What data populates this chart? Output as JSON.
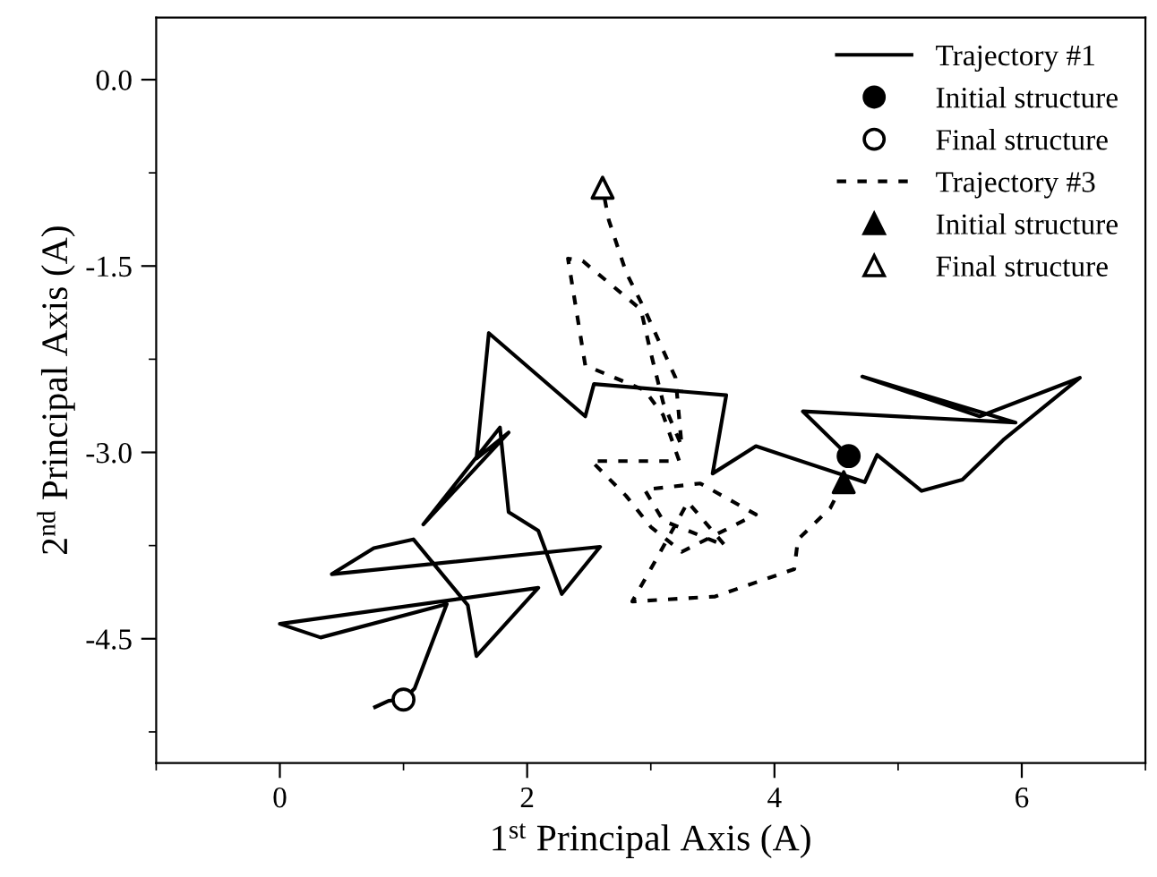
{
  "chart_data": {
    "type": "line",
    "xlabel": "1$^{st}$ Principal Axis (A)",
    "ylabel": "2$^{nd}$ Principal Axis (A)",
    "xlim": [
      -1,
      7
    ],
    "xticks": [
      0,
      2,
      4,
      6
    ],
    "ylim": [
      -5.5,
      0.5
    ],
    "yticks": [
      {
        "value": 0,
        "label": "0.0"
      },
      {
        "value": -1.5,
        "label": "-1.5"
      },
      {
        "value": -3,
        "label": "-3.0"
      },
      {
        "value": -4.5,
        "label": "-4.5"
      }
    ],
    "grid": false,
    "legend": "top right",
    "series": [
      {
        "name": "Trajectory #1",
        "color": "#000000",
        "line_style": "solid",
        "marker": "none",
        "x": [
          4.6,
          4.23,
          5.95,
          4.71,
          5.66,
          6.47,
          5.85,
          5.52,
          5.19,
          4.83,
          4.73,
          3.85,
          3.5,
          3.61,
          2.54,
          2.47,
          1.69,
          1.59,
          1.85,
          1.16,
          1.78,
          1.85,
          2.09,
          2.28,
          2.59,
          0.42,
          0.76,
          1.08,
          1.52,
          1.59,
          2.09,
          0.0,
          0.33,
          1.35,
          1.09,
          1.0,
          0.88,
          0.77
        ],
        "values": [
          -3.03,
          -2.67,
          -2.76,
          -2.39,
          -2.71,
          -2.4,
          -2.9,
          -3.22,
          -3.31,
          -3.02,
          -3.24,
          -2.95,
          -3.17,
          -2.54,
          -2.45,
          -2.71,
          -2.04,
          -3.05,
          -2.84,
          -3.58,
          -2.8,
          -3.48,
          -3.63,
          -4.14,
          -3.76,
          -3.98,
          -3.77,
          -3.7,
          -4.23,
          -4.64,
          -4.09,
          -4.38,
          -4.49,
          -4.22,
          -4.9,
          -4.99,
          -5.0,
          -5.05
        ]
      },
      {
        "name": "Initial structure",
        "type": "scatter",
        "color": "#000000",
        "marker": "circle",
        "x": [
          4.6
        ],
        "values": [
          -3.03
        ]
      },
      {
        "name": "Final structure",
        "type": "scatter",
        "color": "#ffffff",
        "marker": "circle",
        "x": [
          1.0
        ],
        "values": [
          -4.99
        ]
      },
      {
        "name": "Trajectory #3",
        "color": "#000000",
        "line_style": "dashed",
        "marker": "none",
        "x": [
          4.56,
          4.45,
          4.19,
          4.16,
          3.52,
          2.85,
          3.05,
          3.3,
          3.6,
          3.1,
          2.95,
          3.4,
          3.85,
          3.25,
          3.0,
          2.8,
          2.52,
          3.23,
          3.1,
          2.95,
          2.47,
          2.33,
          2.45,
          2.92,
          3.0,
          3.1,
          3.25,
          3.2,
          2.95,
          2.8,
          2.66,
          2.61
        ],
        "values": [
          -3.24,
          -3.45,
          -3.7,
          -3.94,
          -4.16,
          -4.2,
          -3.85,
          -3.4,
          -3.75,
          -3.55,
          -3.3,
          -3.25,
          -3.5,
          -3.8,
          -3.6,
          -3.35,
          -3.07,
          -3.07,
          -2.7,
          -2.5,
          -2.3,
          -1.44,
          -1.46,
          -1.85,
          -2.2,
          -2.6,
          -2.95,
          -2.4,
          -1.85,
          -1.55,
          -1.13,
          -0.87
        ]
      },
      {
        "name": "Initial structure",
        "type": "scatter",
        "color": "#000000",
        "marker": "triangle",
        "x": [
          4.56
        ],
        "values": [
          -3.24
        ]
      },
      {
        "name": "Final structure",
        "type": "scatter",
        "color": "#ffffff",
        "marker": "triangle",
        "x": [
          2.61
        ],
        "values": [
          -0.87
        ]
      }
    ]
  }
}
